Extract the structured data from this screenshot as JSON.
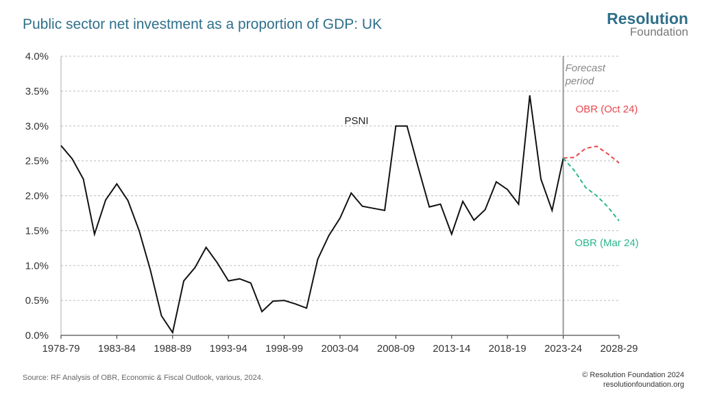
{
  "header": {
    "title": "Public sector net investment as a proportion of GDP: UK",
    "logo_top": "Resolution",
    "logo_bottom": "Foundation"
  },
  "footer": {
    "source": "Source: RF Analysis of OBR, Economic & Fiscal Outlook, various,  2024.",
    "copyright": "© Resolution Foundation 2024",
    "website": "resolutionfoundation.org"
  },
  "chart_data": {
    "type": "line",
    "categories": [
      "1978-79",
      null,
      null,
      null,
      null,
      "1983-84",
      null,
      null,
      null,
      null,
      "1988-89",
      null,
      null,
      null,
      null,
      "1993-94",
      null,
      null,
      null,
      null,
      "1998-99",
      null,
      null,
      null,
      null,
      "2003-04",
      null,
      null,
      null,
      null,
      "2008-09",
      null,
      null,
      null,
      null,
      "2013-14",
      null,
      null,
      null,
      null,
      "2018-19",
      null,
      null,
      null,
      null,
      "2023-24",
      null,
      null,
      null,
      null,
      "2028-29"
    ],
    "series": [
      {
        "name": "PSNI",
        "color": "#111111",
        "dashed": false,
        "values": [
          2.72,
          2.53,
          2.24,
          1.45,
          1.94,
          2.17,
          1.93,
          1.5,
          0.94,
          0.28,
          0.04,
          0.78,
          0.97,
          1.26,
          1.04,
          0.78,
          0.81,
          0.75,
          0.34,
          0.49,
          0.5,
          0.45,
          0.39,
          1.09,
          1.43,
          1.68,
          2.04,
          1.85,
          1.82,
          1.79,
          3.0,
          3.0,
          2.41,
          1.84,
          1.88,
          1.45,
          1.92,
          1.65,
          1.8,
          2.2,
          2.09,
          1.88,
          3.44,
          2.24,
          1.79,
          2.54,
          null,
          null,
          null,
          null,
          null
        ]
      },
      {
        "name": "OBR (Oct 24)",
        "color": "#e8474c",
        "dashed": true,
        "values": [
          null,
          null,
          null,
          null,
          null,
          null,
          null,
          null,
          null,
          null,
          null,
          null,
          null,
          null,
          null,
          null,
          null,
          null,
          null,
          null,
          null,
          null,
          null,
          null,
          null,
          null,
          null,
          null,
          null,
          null,
          null,
          null,
          null,
          null,
          null,
          null,
          null,
          null,
          null,
          null,
          null,
          null,
          null,
          null,
          null,
          2.54,
          2.55,
          2.68,
          2.71,
          2.6,
          2.47
        ]
      },
      {
        "name": "OBR (Mar 24)",
        "color": "#2bb68d",
        "dashed": true,
        "values": [
          null,
          null,
          null,
          null,
          null,
          null,
          null,
          null,
          null,
          null,
          null,
          null,
          null,
          null,
          null,
          null,
          null,
          null,
          null,
          null,
          null,
          null,
          null,
          null,
          null,
          null,
          null,
          null,
          null,
          null,
          null,
          null,
          null,
          null,
          null,
          null,
          null,
          null,
          null,
          null,
          null,
          null,
          null,
          null,
          null,
          2.54,
          2.36,
          2.12,
          2.0,
          1.84,
          1.64
        ]
      }
    ],
    "annotation": "Forecast period",
    "ylim": [
      0,
      4
    ],
    "yticks": [
      {
        "value": 0,
        "label": "0.0%"
      },
      {
        "value": 0.5,
        "label": "0.5%"
      },
      {
        "value": 1,
        "label": "1.0%"
      },
      {
        "value": 1.5,
        "label": "1.5%"
      },
      {
        "value": 2,
        "label": "2.0%"
      },
      {
        "value": 2.5,
        "label": "2.5%"
      },
      {
        "value": 3,
        "label": "3.0%"
      },
      {
        "value": 3.5,
        "label": "3.5%"
      },
      {
        "value": 4,
        "label": "4.0%"
      }
    ],
    "grid": true
  }
}
